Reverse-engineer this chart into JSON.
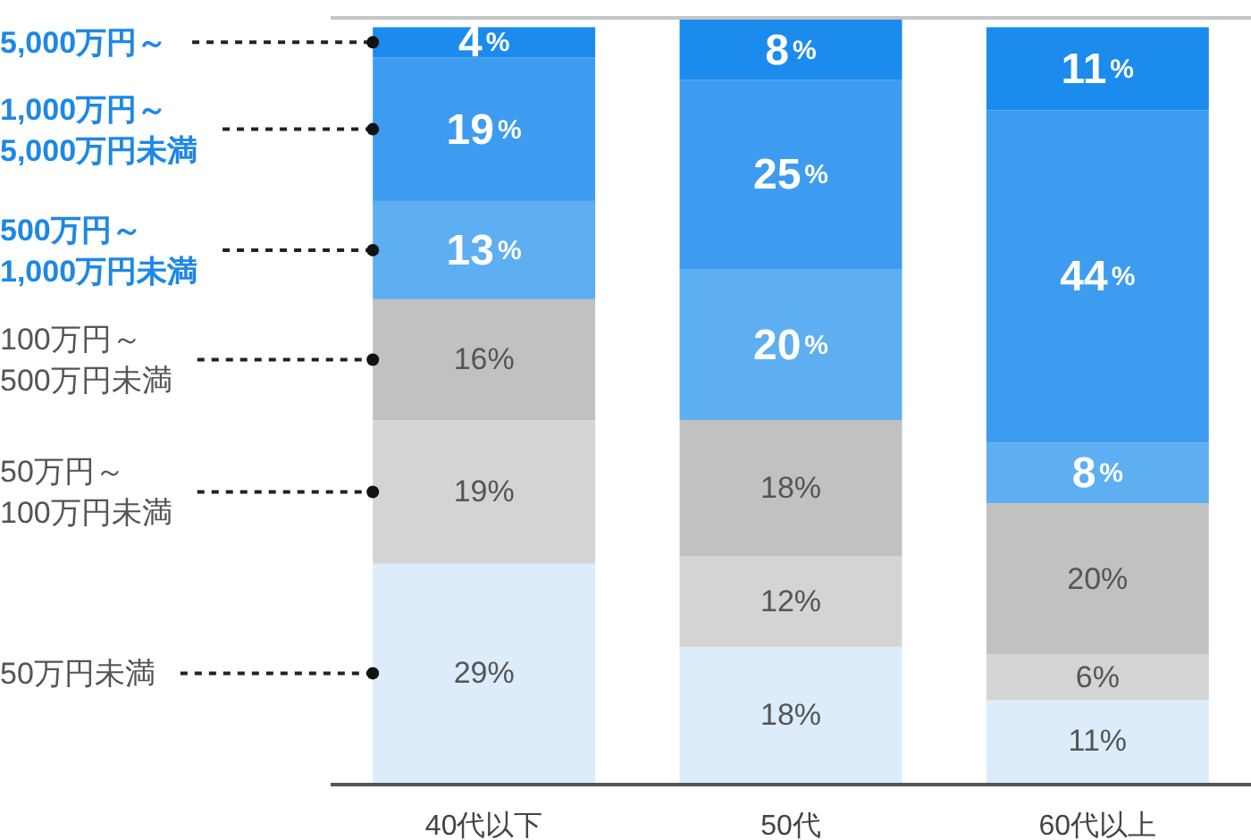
{
  "chart_data": {
    "type": "bar",
    "stacked": true,
    "legend": "left",
    "categories": [
      "40代以下",
      "50代",
      "60代以上"
    ],
    "series": [
      {
        "name": "50万円未満",
        "color": "#dcecfb",
        "values": [
          29,
          18,
          11
        ],
        "value_labels": [
          "29%",
          "18%",
          "11%"
        ]
      },
      {
        "name": "50万円～\n100万円未満",
        "color": "#d4d4d4",
        "values": [
          19,
          12,
          6
        ],
        "value_labels": [
          "19%",
          "12%",
          "6%"
        ]
      },
      {
        "name": "100万円～\n500万円未満",
        "color": "#c1c1c1",
        "values": [
          16,
          18,
          20
        ],
        "value_labels": [
          "16%",
          "18%",
          "20%"
        ]
      },
      {
        "name": "500万円～\n1,000万円未満",
        "color": "#5eaef2",
        "values": [
          13,
          20,
          8
        ],
        "value_labels": [
          "13%",
          "20%",
          "8%"
        ]
      },
      {
        "name": "1,000万円～\n5,000万円未満",
        "color": "#3d9cef",
        "values": [
          19,
          25,
          44
        ],
        "value_labels": [
          "19%",
          "25%",
          "44%"
        ]
      },
      {
        "name": "5,000万円～",
        "color": "#1b8bee",
        "values": [
          4,
          8,
          11
        ],
        "value_labels": [
          "4%",
          "8%",
          "11%"
        ]
      }
    ]
  }
}
